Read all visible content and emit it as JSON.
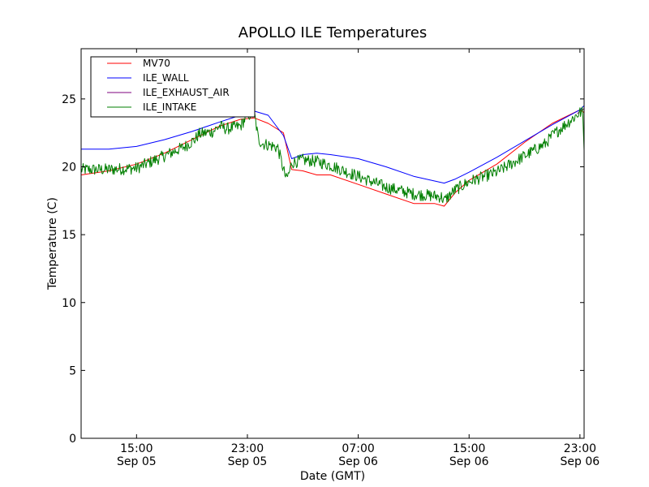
{
  "chart_data": {
    "type": "line",
    "title": "APOLLO ILE Temperatures",
    "xlabel": "Date (GMT)",
    "ylabel": "Temperature (C)",
    "ylim": [
      0,
      28.7
    ],
    "xlim_hours": [
      11.0,
      47.3
    ],
    "x_ticks": [
      {
        "hour": 15,
        "line1": "15:00",
        "line2": "Sep 05"
      },
      {
        "hour": 23,
        "line1": "23:00",
        "line2": "Sep 05"
      },
      {
        "hour": 31,
        "line1": "07:00",
        "line2": "Sep 06"
      },
      {
        "hour": 39,
        "line1": "15:00",
        "line2": "Sep 06"
      },
      {
        "hour": 47,
        "line1": "23:00",
        "line2": "Sep 06"
      }
    ],
    "y_ticks": [
      0,
      5,
      10,
      15,
      20,
      25
    ],
    "legend_position": "upper-left",
    "series": [
      {
        "name": "MV70",
        "color": "#ff0000",
        "noise": 0,
        "x": [
          11.0,
          13.0,
          15.0,
          17.0,
          19.0,
          21.0,
          22.5,
          23.5,
          24.5,
          25.6,
          26.2,
          27.0,
          28.0,
          29.0,
          31.0,
          33.0,
          35.0,
          36.5,
          37.2,
          38.0,
          39.0,
          41.0,
          43.0,
          45.0,
          47.0,
          47.3
        ],
        "y": [
          19.4,
          19.7,
          20.2,
          21.0,
          22.0,
          23.0,
          23.5,
          23.6,
          23.2,
          22.5,
          19.8,
          19.7,
          19.4,
          19.4,
          18.7,
          18.0,
          17.3,
          17.3,
          17.1,
          18.1,
          19.0,
          20.2,
          21.8,
          23.2,
          24.2,
          24.0
        ]
      },
      {
        "name": "ILE_WALL",
        "color": "#0000ff",
        "noise": 0,
        "x": [
          11.0,
          13.0,
          15.0,
          17.0,
          19.0,
          21.0,
          22.5,
          23.5,
          24.5,
          25.6,
          26.2,
          27.0,
          28.0,
          29.0,
          31.0,
          33.0,
          35.0,
          37.2,
          38.0,
          39.0,
          41.0,
          43.0,
          45.0,
          47.0,
          47.3
        ],
        "y": [
          21.3,
          21.3,
          21.5,
          22.0,
          22.6,
          23.3,
          23.8,
          24.1,
          23.8,
          22.3,
          20.6,
          20.9,
          21.0,
          20.9,
          20.6,
          20.0,
          19.3,
          18.8,
          19.1,
          19.6,
          20.7,
          21.9,
          23.1,
          24.2,
          24.5
        ]
      },
      {
        "name": "ILE_EXHAUST_AIR",
        "color": "#7f007f",
        "noise": 0,
        "x": [
          46.8,
          47.0,
          47.2,
          47.3
        ],
        "y": [
          23.9,
          24.1,
          24.2,
          24.3
        ]
      },
      {
        "name": "ILE_INTAKE",
        "color": "#007f00",
        "noise": 0.45,
        "x": [
          11.0,
          13.0,
          15.0,
          17.0,
          18.5,
          19.2,
          19.5,
          20.5,
          21.0,
          21.5,
          22.5,
          23.0,
          23.5,
          23.8,
          24.1,
          24.6,
          25.2,
          25.6,
          25.8,
          26.0,
          26.2,
          27.0,
          28.0,
          29.0,
          31.0,
          33.0,
          35.0,
          37.0,
          37.2,
          38.0,
          39.0,
          41.0,
          43.0,
          44.5,
          45.0,
          47.0,
          47.2,
          47.3
        ],
        "y": [
          19.8,
          19.8,
          19.9,
          20.8,
          21.5,
          22.0,
          22.4,
          22.6,
          23.0,
          22.8,
          23.0,
          23.8,
          23.9,
          22.0,
          21.7,
          21.6,
          21.4,
          19.8,
          19.1,
          19.5,
          20.3,
          20.5,
          20.4,
          20.1,
          19.3,
          18.5,
          18.0,
          17.8,
          17.5,
          18.3,
          18.9,
          19.6,
          20.8,
          21.7,
          22.3,
          24.0,
          24.0,
          21.2
        ]
      }
    ]
  }
}
